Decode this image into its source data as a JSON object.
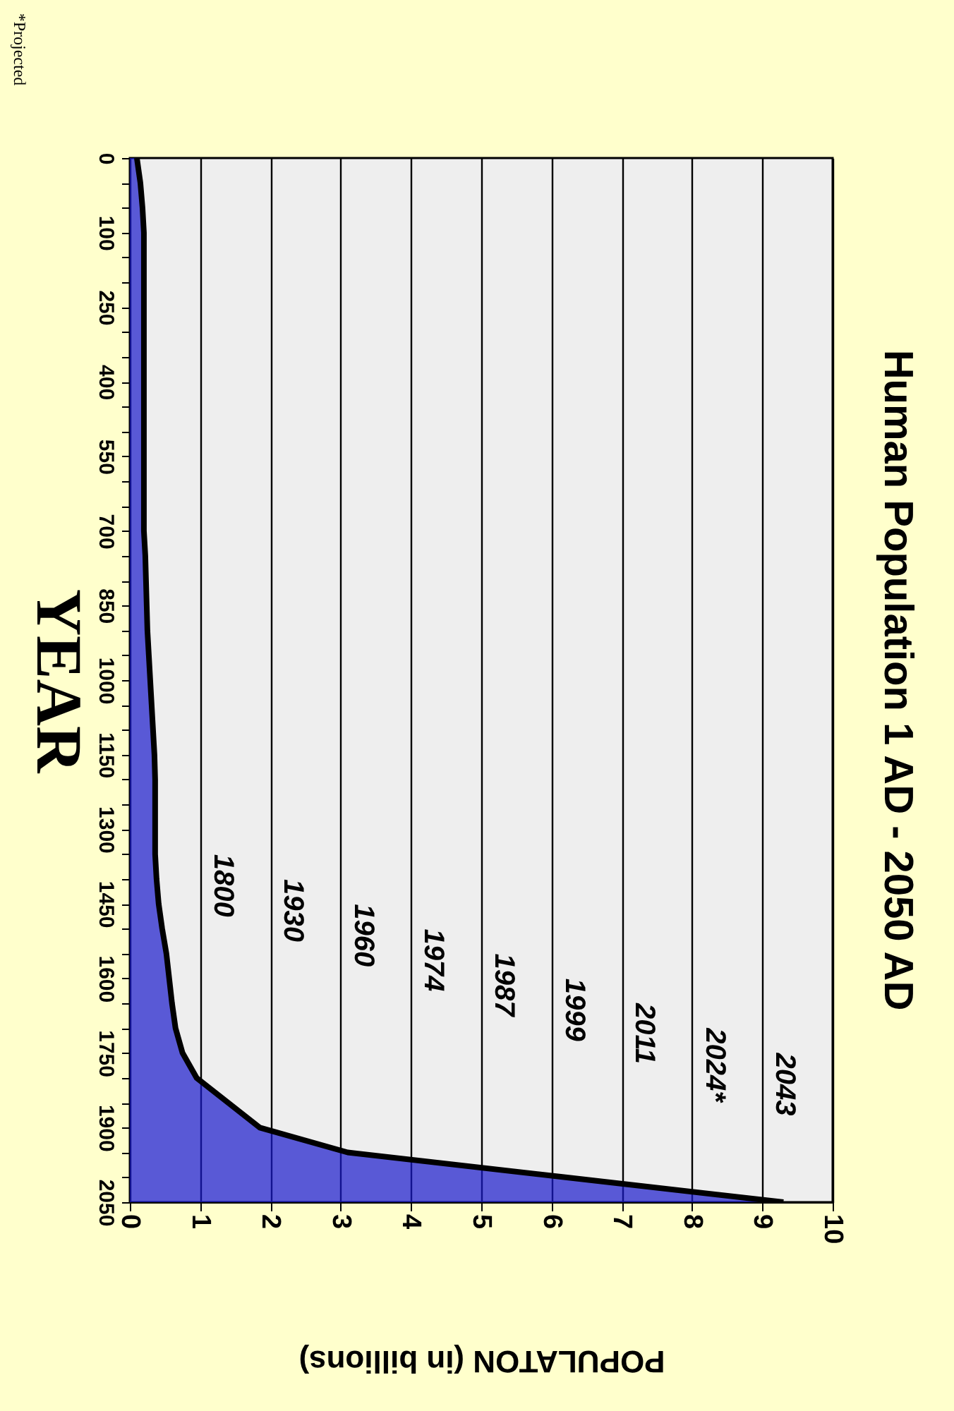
{
  "chart_data": {
    "type": "area",
    "orientation": "horizontal",
    "title": "Human Population 1 AD - 2050 AD",
    "xlabel": "POPULATON (in billions)",
    "ylabel": "YEAR",
    "categories": [
      "0",
      null,
      null,
      "100",
      null,
      null,
      "250",
      null,
      null,
      "400",
      null,
      null,
      "550",
      null,
      null,
      "700",
      null,
      null,
      "850",
      null,
      null,
      "1000",
      null,
      null,
      "1150",
      null,
      null,
      "1300",
      null,
      null,
      "1450",
      null,
      null,
      "1600",
      null,
      null,
      "1750",
      null,
      null,
      "1900",
      null,
      null,
      "2050"
    ],
    "values": [
      0.1,
      0.15,
      0.18,
      0.2,
      0.2,
      0.2,
      0.2,
      0.2,
      0.2,
      0.2,
      0.2,
      0.2,
      0.2,
      0.2,
      0.2,
      0.2,
      0.22,
      0.23,
      0.24,
      0.25,
      0.27,
      0.29,
      0.31,
      0.33,
      0.35,
      0.36,
      0.36,
      0.36,
      0.36,
      0.38,
      0.41,
      0.46,
      0.52,
      0.56,
      0.6,
      0.65,
      0.75,
      0.95,
      1.4,
      1.85,
      3.1,
      6.2,
      9.3
    ],
    "color": "#1a1acc",
    "xlim": [
      0,
      10
    ],
    "xticks": [
      0,
      1,
      2,
      3,
      4,
      5,
      6,
      7,
      8,
      9,
      10
    ],
    "grid": "x",
    "annotations": [
      "1800",
      "1930",
      "1960",
      "1974",
      "1987",
      "1999",
      "2011",
      "2024*",
      "2043",
      "*Projected"
    ]
  }
}
